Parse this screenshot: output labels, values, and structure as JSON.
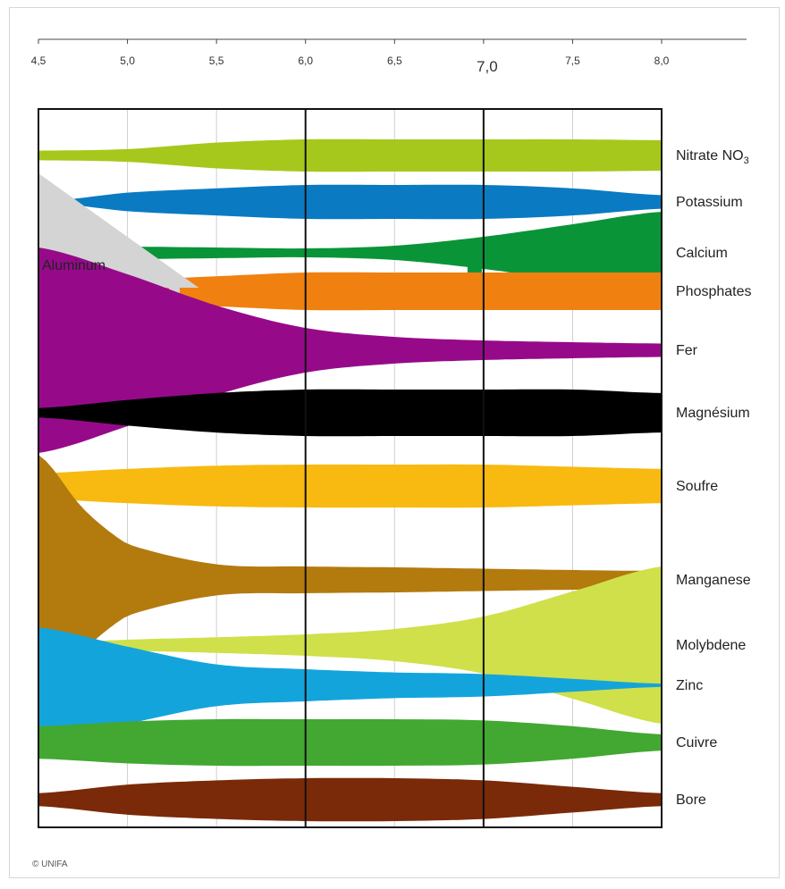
{
  "credit": "© UNIFA",
  "chart_data": {
    "type": "area",
    "title": "",
    "xlabel": "",
    "ylabel": "",
    "xlim": [
      4.5,
      8.0
    ],
    "ticks": [
      {
        "value": 4.5,
        "label": "4,5"
      },
      {
        "value": 5.0,
        "label": "5,0"
      },
      {
        "value": 5.5,
        "label": "5,5"
      },
      {
        "value": 6.0,
        "label": "6,0"
      },
      {
        "value": 6.5,
        "label": "6,5"
      },
      {
        "value": 7.0,
        "label": "7,0",
        "emphasis": true
      },
      {
        "value": 7.5,
        "label": "7,5"
      },
      {
        "value": 8.0,
        "label": "8,0"
      }
    ],
    "major_lines": [
      6.0,
      7.0
    ],
    "minor_lines": [
      5.0,
      5.5,
      6.5,
      7.5
    ],
    "series": [
      {
        "name": "Nitrate NO",
        "subscript": "3",
        "color": "#a6c81c",
        "x": [
          4.5,
          5.0,
          5.5,
          6.0,
          6.5,
          7.0,
          7.5,
          8.0
        ],
        "values": [
          0.3,
          0.4,
          0.8,
          1.0,
          1.0,
          1.0,
          1.0,
          0.95
        ]
      },
      {
        "name": "Potassium",
        "color": "#0a7bc2",
        "x": [
          4.6,
          5.0,
          5.5,
          6.0,
          6.5,
          7.0,
          7.5,
          8.0
        ],
        "values": [
          0.1,
          0.55,
          0.8,
          1.0,
          1.0,
          1.0,
          0.8,
          0.4
        ]
      },
      {
        "name": "Calcium",
        "color": "#0a9438",
        "x": [
          5.0,
          5.5,
          6.0,
          6.5,
          7.0,
          7.5,
          8.0
        ],
        "values": [
          0.35,
          0.3,
          0.25,
          0.4,
          0.9,
          1.6,
          2.3
        ],
        "note": "notched lower edge from 6.9 to 8.0"
      },
      {
        "name": "Phosphates",
        "color": "#f08110",
        "x": [
          4.5,
          5.0,
          5.5,
          6.0,
          6.5,
          7.0,
          7.5,
          8.0
        ],
        "values": [
          0.6,
          0.6,
          0.8,
          1.0,
          1.0,
          1.0,
          1.0,
          1.0
        ]
      },
      {
        "name": "Fer",
        "color": "#960a8a",
        "x": [
          4.5,
          5.0,
          5.5,
          6.0,
          6.5,
          7.0,
          7.5,
          8.0
        ],
        "values": [
          2.3,
          1.7,
          1.0,
          0.5,
          0.3,
          0.22,
          0.18,
          0.15
        ]
      },
      {
        "name": "Magnésium",
        "color": "#000000",
        "x": [
          4.5,
          5.0,
          5.5,
          6.0,
          6.5,
          7.0,
          7.5,
          8.0
        ],
        "values": [
          0.2,
          0.55,
          0.85,
          1.0,
          1.0,
          1.0,
          1.0,
          0.85
        ]
      },
      {
        "name": "Soufre",
        "color": "#f8b910",
        "x": [
          4.5,
          5.0,
          5.5,
          6.0,
          6.5,
          7.0,
          7.5,
          8.0
        ],
        "values": [
          0.6,
          0.8,
          0.95,
          1.0,
          1.0,
          1.0,
          0.9,
          0.8
        ]
      },
      {
        "name": "Manganese",
        "color": "#b37a0e",
        "x": [
          4.5,
          4.75,
          5.0,
          5.5,
          6.0,
          6.5,
          7.0,
          7.5,
          8.0
        ],
        "values": [
          2.8,
          1.6,
          0.8,
          0.35,
          0.3,
          0.28,
          0.25,
          0.22,
          0.2
        ]
      },
      {
        "name": "Molybdene",
        "color": "#cfe04a",
        "x": [
          4.5,
          5.0,
          5.5,
          6.0,
          6.5,
          7.0,
          7.5,
          8.0
        ],
        "values": [
          0.05,
          0.15,
          0.22,
          0.3,
          0.45,
          0.8,
          1.5,
          2.2
        ]
      },
      {
        "name": "Zinc",
        "color": "#14a4dc",
        "x": [
          4.5,
          5.0,
          5.5,
          6.0,
          6.5,
          7.0,
          7.5,
          8.0
        ],
        "values": [
          1.8,
          1.2,
          0.65,
          0.5,
          0.4,
          0.35,
          0.2,
          0.05
        ]
      },
      {
        "name": "Cuivre",
        "color": "#42a832",
        "x": [
          4.5,
          5.0,
          5.5,
          6.0,
          6.5,
          7.0,
          7.5,
          8.0
        ],
        "values": [
          0.7,
          0.9,
          1.0,
          1.0,
          1.0,
          0.95,
          0.7,
          0.35
        ]
      },
      {
        "name": "Bore",
        "color": "#7a2a08",
        "x": [
          4.5,
          5.0,
          5.5,
          6.0,
          6.5,
          7.0,
          7.5,
          8.0
        ],
        "values": [
          0.3,
          0.7,
          0.9,
          1.0,
          1.0,
          0.9,
          0.6,
          0.3
        ]
      }
    ],
    "aluminum": {
      "name": "Aluminum",
      "color": "#d4d4d4",
      "x_end": 5.4
    }
  }
}
